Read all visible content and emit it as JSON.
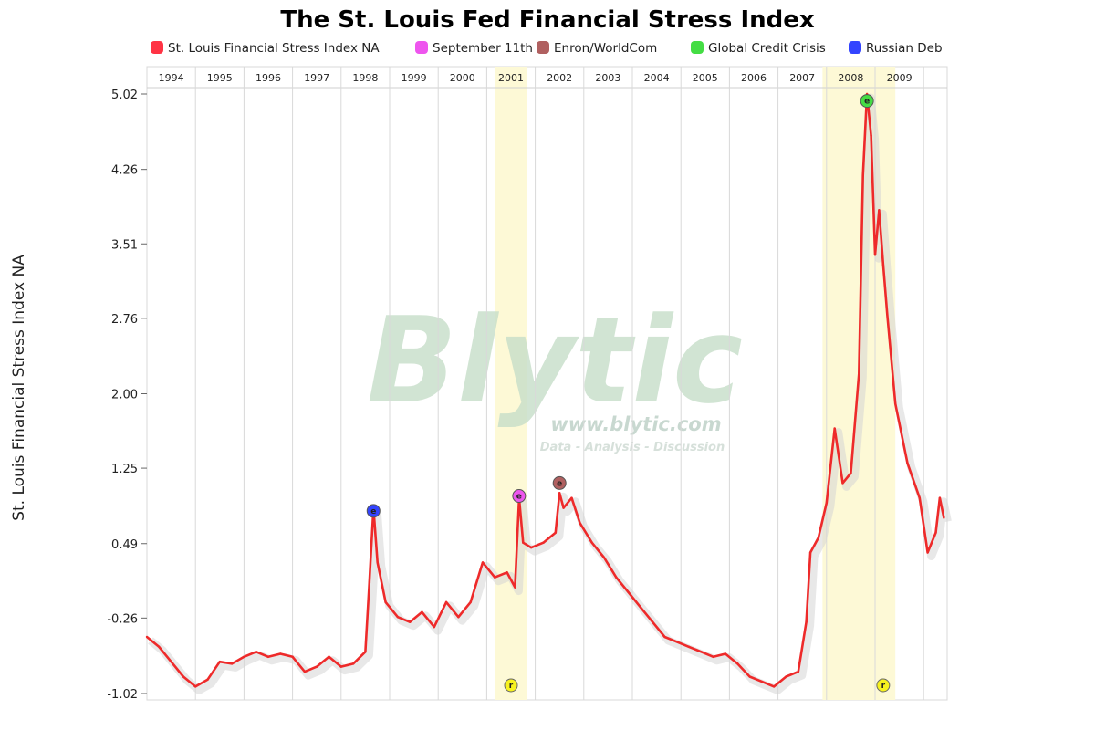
{
  "chart_data": {
    "type": "line",
    "title": "The St. Louis Fed Financial Stress Index",
    "ylabel": "St. Louis Financial Stress Index NA",
    "xlabel": "",
    "ylim": [
      -1.02,
      5.02
    ],
    "xlim": [
      "1994-01",
      "2010-06"
    ],
    "yticks": [
      "5.02",
      "4.26",
      "3.51",
      "2.76",
      "2.00",
      "1.25",
      "0.49",
      "-0.26",
      "-1.02"
    ],
    "year_labels": [
      "1994",
      "1995",
      "1996",
      "1997",
      "1998",
      "1999",
      "2000",
      "2001",
      "2002",
      "2003",
      "2004",
      "2005",
      "2006",
      "2007",
      "2008",
      "2009"
    ],
    "legend": [
      {
        "label": "St. Louis Financial Stress Index NA",
        "color": "#ff3344"
      },
      {
        "label": "September 11th",
        "color": "#ee55ee"
      },
      {
        "label": "Enron/WorldCom",
        "color": "#b06060"
      },
      {
        "label": "Global Credit Crisis",
        "color": "#44dd44"
      },
      {
        "label": "Russian Deb",
        "color": "#3344ff"
      }
    ],
    "shaded_periods": [
      {
        "start": "2001-03",
        "end": "2001-11"
      },
      {
        "start": "2007-12",
        "end": "2009-06"
      }
    ],
    "series": [
      {
        "name": "St. Louis Financial Stress Index NA",
        "color": "#ee2a2a",
        "points": [
          [
            "1994-01",
            -0.45
          ],
          [
            "1994-04",
            -0.55
          ],
          [
            "1994-07",
            -0.7
          ],
          [
            "1994-10",
            -0.85
          ],
          [
            "1995-01",
            -0.95
          ],
          [
            "1995-04",
            -0.88
          ],
          [
            "1995-07",
            -0.7
          ],
          [
            "1995-10",
            -0.72
          ],
          [
            "1996-01",
            -0.65
          ],
          [
            "1996-04",
            -0.6
          ],
          [
            "1996-07",
            -0.65
          ],
          [
            "1996-10",
            -0.62
          ],
          [
            "1997-01",
            -0.65
          ],
          [
            "1997-04",
            -0.8
          ],
          [
            "1997-07",
            -0.75
          ],
          [
            "1997-10",
            -0.65
          ],
          [
            "1998-01",
            -0.75
          ],
          [
            "1998-04",
            -0.72
          ],
          [
            "1998-07",
            -0.6
          ],
          [
            "1998-08",
            0.1
          ],
          [
            "1998-09",
            0.85
          ],
          [
            "1998-10",
            0.3
          ],
          [
            "1998-12",
            -0.1
          ],
          [
            "1999-03",
            -0.25
          ],
          [
            "1999-06",
            -0.3
          ],
          [
            "1999-09",
            -0.2
          ],
          [
            "1999-12",
            -0.35
          ],
          [
            "2000-03",
            -0.1
          ],
          [
            "2000-06",
            -0.25
          ],
          [
            "2000-09",
            -0.1
          ],
          [
            "2000-12",
            0.3
          ],
          [
            "2001-03",
            0.15
          ],
          [
            "2001-06",
            0.2
          ],
          [
            "2001-08",
            0.05
          ],
          [
            "2001-09",
            0.95
          ],
          [
            "2001-10",
            0.5
          ],
          [
            "2001-12",
            0.45
          ],
          [
            "2002-03",
            0.5
          ],
          [
            "2002-06",
            0.6
          ],
          [
            "2002-07",
            1.0
          ],
          [
            "2002-08",
            0.85
          ],
          [
            "2002-10",
            0.95
          ],
          [
            "2002-12",
            0.7
          ],
          [
            "2003-03",
            0.5
          ],
          [
            "2003-06",
            0.35
          ],
          [
            "2003-09",
            0.15
          ],
          [
            "2003-12",
            0.0
          ],
          [
            "2004-03",
            -0.15
          ],
          [
            "2004-06",
            -0.3
          ],
          [
            "2004-09",
            -0.45
          ],
          [
            "2004-12",
            -0.5
          ],
          [
            "2005-03",
            -0.55
          ],
          [
            "2005-06",
            -0.6
          ],
          [
            "2005-09",
            -0.65
          ],
          [
            "2005-12",
            -0.62
          ],
          [
            "2006-03",
            -0.72
          ],
          [
            "2006-06",
            -0.85
          ],
          [
            "2006-09",
            -0.9
          ],
          [
            "2006-12",
            -0.95
          ],
          [
            "2007-03",
            -0.85
          ],
          [
            "2007-06",
            -0.8
          ],
          [
            "2007-08",
            -0.3
          ],
          [
            "2007-09",
            0.4
          ],
          [
            "2007-11",
            0.55
          ],
          [
            "2008-01",
            0.9
          ],
          [
            "2008-03",
            1.65
          ],
          [
            "2008-05",
            1.1
          ],
          [
            "2008-07",
            1.2
          ],
          [
            "2008-09",
            2.2
          ],
          [
            "2008-10",
            4.2
          ],
          [
            "2008-11",
            5.02
          ],
          [
            "2008-12",
            4.6
          ],
          [
            "2009-01",
            3.4
          ],
          [
            "2009-02",
            3.85
          ],
          [
            "2009-03",
            3.3
          ],
          [
            "2009-04",
            2.8
          ],
          [
            "2009-06",
            1.9
          ],
          [
            "2009-09",
            1.3
          ],
          [
            "2009-12",
            0.95
          ],
          [
            "2010-02",
            0.4
          ],
          [
            "2010-04",
            0.6
          ],
          [
            "2010-05",
            0.95
          ],
          [
            "2010-06",
            0.75
          ]
        ]
      }
    ],
    "events": [
      {
        "label": "Russian Deb",
        "x": "1998-09",
        "y": 0.82,
        "color": "#3344ff",
        "glyph": "e"
      },
      {
        "label": "September 11th",
        "x": "2001-09",
        "y": 0.97,
        "color": "#ee55ee",
        "glyph": "e"
      },
      {
        "label": "Enron/WorldCom",
        "x": "2002-07",
        "y": 1.1,
        "color": "#b06060",
        "glyph": "e"
      },
      {
        "label": "Global Credit Crisis",
        "x": "2008-11",
        "y": 4.95,
        "color": "#44dd44",
        "glyph": "e"
      }
    ],
    "period_markers": [
      {
        "x": "2001-07",
        "glyph": "r"
      },
      {
        "x": "2009-03",
        "glyph": "r"
      }
    ],
    "watermark": {
      "title": "Blytic",
      "url": "www.blytic.com",
      "tagline": "Data - Analysis - Discussion"
    }
  }
}
